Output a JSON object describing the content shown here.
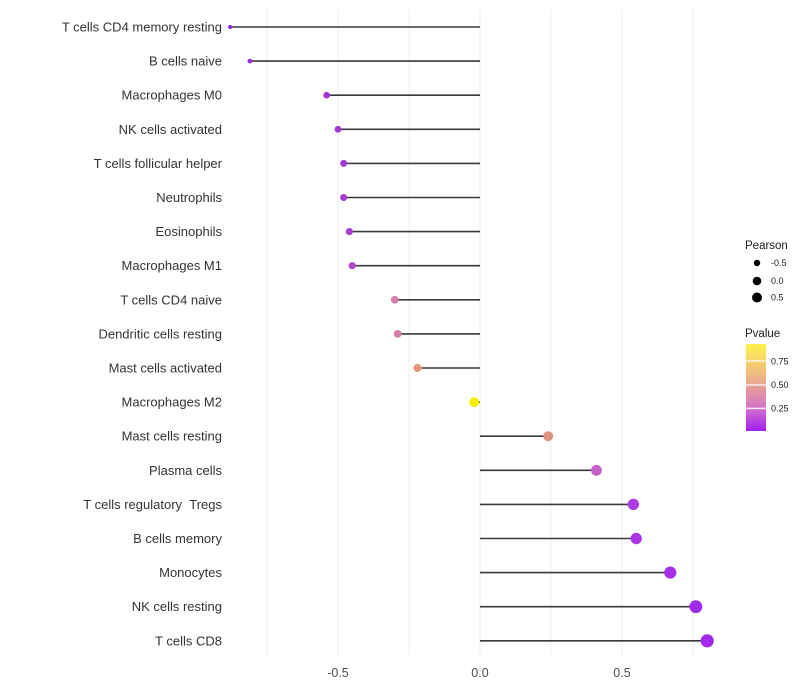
{
  "figure": {
    "background": "#ffffff",
    "title": ""
  },
  "chart_data": {
    "type": "bar",
    "style": "horizontal-lollipop",
    "orientation": "horizontal",
    "grid": true,
    "categories": [
      "T cells CD4 memory resting",
      "B cells naive",
      "Macrophages M0",
      "NK cells activated",
      "T cells follicular helper",
      "Neutrophils",
      "Eosinophils",
      "Macrophages M1",
      "T cells CD4 naive",
      "Dendritic cells resting",
      "Mast cells activated",
      "Macrophages M2",
      "Mast cells resting",
      "Plasma cells",
      "T cells regulatory  Tregs",
      "B cells memory",
      "Monocytes",
      "NK cells resting",
      "T cells CD8"
    ],
    "series": [
      {
        "name": "Pearson",
        "values": [
          -0.88,
          -0.81,
          -0.54,
          -0.5,
          -0.48,
          -0.48,
          -0.46,
          -0.45,
          -0.3,
          -0.29,
          -0.22,
          -0.02,
          0.24,
          0.41,
          0.54,
          0.55,
          0.67,
          0.76,
          0.8
        ]
      }
    ],
    "pvalue_approx": [
      0.01,
      0.02,
      0.05,
      0.06,
      0.07,
      0.07,
      0.08,
      0.11,
      0.3,
      0.3,
      0.46,
      0.93,
      0.44,
      0.24,
      0.08,
      0.07,
      0.05,
      0.04,
      0.03
    ],
    "point_colors": [
      "#8D22DC",
      "#9729DF",
      "#A435DA",
      "#A537D9",
      "#A63AD6",
      "#A63AD6",
      "#A93ED3",
      "#B348CB",
      "#D77EA9",
      "#D67DA8",
      "#E9947C",
      "#F6F000",
      "#E29180",
      "#C55FCA",
      "#AB3BE3",
      "#A937E4",
      "#A430E9",
      "#A12BEC",
      "#A329ED"
    ],
    "point_radius_px": [
      2.0,
      2.4,
      3.3,
      3.4,
      3.5,
      3.5,
      3.6,
      3.6,
      3.9,
      3.9,
      4.1,
      5.0,
      5.0,
      5.4,
      5.7,
      5.7,
      6.1,
      6.4,
      6.6
    ],
    "xlabel": "",
    "ylabel": "",
    "xlim": [
      -0.9,
      0.9
    ],
    "x_axis": {
      "tick_values": [
        -0.5,
        0.0,
        0.5
      ],
      "tick_labels": [
        "-0.5",
        "0.0",
        "0.5"
      ],
      "gridline_values": [
        -0.75,
        -0.5,
        -0.25,
        0.0,
        0.25,
        0.5,
        0.75
      ]
    },
    "legend": {
      "position": "right",
      "size_legend": {
        "title": "Pearson",
        "entries": [
          {
            "label": "-0.5",
            "radius_px": 3.2
          },
          {
            "label": "0.0",
            "radius_px": 4.3
          },
          {
            "label": "0.5",
            "radius_px": 5.0
          }
        ],
        "dot_color": "#000000"
      },
      "color_legend": {
        "title": "Pvalue",
        "tick_labels": [
          "0.75",
          "0.50",
          "0.25"
        ],
        "gradient_top_to_bottom": [
          "#FBF04A",
          "#F6D46A",
          "#E8A494",
          "#D26FC8",
          "#A01FF5"
        ],
        "gradient_stops": [
          0,
          0.195,
          0.47,
          0.74,
          1
        ]
      }
    },
    "colors": {
      "segment": "#3A3A3A",
      "gridline": "#ECECEC",
      "axis_text": "#4D4D4D",
      "category_text": "#333333",
      "legend_text": "#1A1A1A"
    }
  }
}
